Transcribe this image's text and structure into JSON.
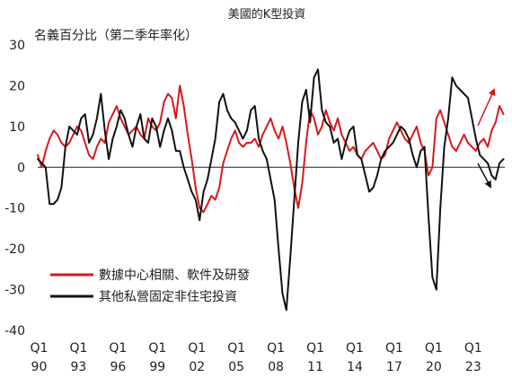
{
  "chart_data": {
    "type": "line",
    "title": "美國的K型投資",
    "subtitle": "名義百分比（第二季年率化）",
    "xlabel": "",
    "ylabel": "",
    "ylim": [
      -40,
      30
    ],
    "yticks": [
      30,
      20,
      10,
      0,
      -10,
      -20,
      -30,
      -40
    ],
    "xticks": [
      {
        "q": "Q1",
        "yr": "90",
        "t": 1990.0
      },
      {
        "q": "Q1",
        "yr": "93",
        "t": 1993.0
      },
      {
        "q": "Q1",
        "yr": "96",
        "t": 1996.0
      },
      {
        "q": "Q1",
        "yr": "99",
        "t": 1999.0
      },
      {
        "q": "Q1",
        "yr": "02",
        "t": 2002.0
      },
      {
        "q": "Q1",
        "yr": "05",
        "t": 2005.0
      },
      {
        "q": "Q1",
        "yr": "08",
        "t": 2008.0
      },
      {
        "q": "Q1",
        "yr": "11",
        "t": 2011.0
      },
      {
        "q": "Q1",
        "yr": "14",
        "t": 2014.0
      },
      {
        "q": "Q1",
        "yr": "17",
        "t": 2017.0
      },
      {
        "q": "Q1",
        "yr": "20",
        "t": 2020.0
      },
      {
        "q": "Q1",
        "yr": "23",
        "t": 2023.0
      }
    ],
    "grid": false,
    "legend_position": "bottom-left",
    "series": [
      {
        "name": "數據中心相關、軟件及研發",
        "color": "#d7191c",
        "x": [
          1989.9,
          1990.2,
          1990.5,
          1990.8,
          1991.1,
          1991.4,
          1991.7,
          1992.0,
          1992.3,
          1992.6,
          1992.9,
          1993.2,
          1993.5,
          1993.8,
          1994.1,
          1994.4,
          1994.7,
          1995.0,
          1995.3,
          1995.6,
          1995.9,
          1996.2,
          1996.5,
          1996.8,
          1997.1,
          1997.4,
          1997.7,
          1998.0,
          1998.3,
          1998.6,
          1998.9,
          1999.2,
          1999.5,
          1999.8,
          2000.1,
          2000.4,
          2000.7,
          2001.0,
          2001.3,
          2001.6,
          2001.9,
          2002.2,
          2002.5,
          2002.8,
          2003.1,
          2003.4,
          2003.7,
          2004.0,
          2004.3,
          2004.6,
          2004.9,
          2005.2,
          2005.5,
          2005.8,
          2006.1,
          2006.4,
          2006.7,
          2007.0,
          2007.3,
          2007.6,
          2007.9,
          2008.2,
          2008.5,
          2008.8,
          2009.1,
          2009.4,
          2009.7,
          2010.0,
          2010.3,
          2010.6,
          2010.9,
          2011.2,
          2011.5,
          2011.8,
          2012.1,
          2012.4,
          2012.7,
          2013.0,
          2013.3,
          2013.6,
          2013.9,
          2014.2,
          2014.5,
          2014.8,
          2015.1,
          2015.4,
          2015.7,
          2016.0,
          2016.3,
          2016.6,
          2016.9,
          2017.2,
          2017.5,
          2017.8,
          2018.1,
          2018.4,
          2018.7,
          2019.0,
          2019.3,
          2019.6,
          2019.9,
          2020.2,
          2020.5,
          2020.8,
          2021.1,
          2021.4,
          2021.7,
          2022.0,
          2022.3,
          2022.6,
          2022.9,
          2023.2,
          2023.5,
          2023.8,
          2024.1,
          2024.4,
          2024.7,
          2025.0,
          2025.3
        ],
        "values": [
          3,
          0,
          4,
          7,
          9,
          8,
          6,
          5,
          6,
          8,
          10,
          9,
          6,
          3,
          2,
          5,
          7,
          6,
          11,
          13,
          15,
          12,
          10,
          8,
          9,
          10,
          8,
          7,
          12,
          10,
          9,
          11,
          16,
          18,
          17,
          12,
          20,
          15,
          8,
          2,
          -5,
          -10,
          -11,
          -9,
          -7,
          -8,
          -5,
          1,
          4,
          7,
          9,
          6,
          5,
          6,
          6,
          7,
          5,
          8,
          10,
          12,
          9,
          7,
          10,
          6,
          1,
          -5,
          -10,
          -4,
          6,
          14,
          12,
          8,
          10,
          14,
          11,
          9,
          12,
          8,
          6,
          4,
          5,
          3,
          2,
          4,
          5,
          6,
          4,
          2,
          3,
          7,
          9,
          11,
          9,
          7,
          6,
          8,
          10,
          6,
          4,
          -2,
          0,
          12,
          14,
          11,
          8,
          5,
          4,
          6,
          8,
          6,
          5,
          4,
          6,
          7,
          5,
          9,
          11,
          15,
          13
        ]
      },
      {
        "name": "其他私營固定非住宅投資",
        "color": "#111111",
        "x": [
          1989.9,
          1990.2,
          1990.5,
          1990.8,
          1991.1,
          1991.4,
          1991.7,
          1992.0,
          1992.3,
          1992.6,
          1992.9,
          1993.2,
          1993.5,
          1993.8,
          1994.1,
          1994.4,
          1994.7,
          1995.0,
          1995.3,
          1995.6,
          1995.9,
          1996.2,
          1996.5,
          1996.8,
          1997.1,
          1997.4,
          1997.7,
          1998.0,
          1998.3,
          1998.6,
          1998.9,
          1999.2,
          1999.5,
          1999.8,
          2000.1,
          2000.4,
          2000.7,
          2001.0,
          2001.3,
          2001.6,
          2001.9,
          2002.2,
          2002.5,
          2002.8,
          2003.1,
          2003.4,
          2003.7,
          2004.0,
          2004.3,
          2004.6,
          2004.9,
          2005.2,
          2005.5,
          2005.8,
          2006.1,
          2006.4,
          2006.7,
          2007.0,
          2007.3,
          2007.6,
          2007.9,
          2008.2,
          2008.5,
          2008.8,
          2009.1,
          2009.4,
          2009.7,
          2010.0,
          2010.3,
          2010.6,
          2010.9,
          2011.2,
          2011.5,
          2011.8,
          2012.1,
          2012.4,
          2012.7,
          2013.0,
          2013.3,
          2013.6,
          2013.9,
          2014.2,
          2014.5,
          2014.8,
          2015.1,
          2015.4,
          2015.7,
          2016.0,
          2016.3,
          2016.6,
          2016.9,
          2017.2,
          2017.5,
          2017.8,
          2018.1,
          2018.4,
          2018.7,
          2019.0,
          2019.3,
          2019.6,
          2019.9,
          2020.2,
          2020.5,
          2020.8,
          2021.1,
          2021.4,
          2021.7,
          2022.0,
          2022.3,
          2022.6,
          2022.9,
          2023.2,
          2023.5,
          2023.8,
          2024.1,
          2024.4,
          2024.7,
          2025.0,
          2025.3
        ],
        "values": [
          2,
          1,
          0,
          -9,
          -9,
          -8,
          -5,
          5,
          10,
          9,
          8,
          12,
          13,
          6,
          8,
          12,
          18,
          9,
          2,
          7,
          10,
          14,
          12,
          8,
          5,
          10,
          13,
          7,
          6,
          12,
          10,
          5,
          9,
          12,
          9,
          4,
          4,
          0,
          -3,
          -6,
          -8,
          -13,
          -6,
          -3,
          2,
          7,
          16,
          18,
          14,
          12,
          11,
          9,
          7,
          9,
          14,
          15,
          7,
          4,
          2,
          -3,
          -8,
          -20,
          -31,
          -35,
          -22,
          -8,
          6,
          16,
          19,
          11,
          22,
          24,
          14,
          11,
          10,
          6,
          7,
          2,
          6,
          9,
          10,
          3,
          2,
          -2,
          -6,
          -5,
          -2,
          2,
          4,
          5,
          6,
          8,
          10,
          9,
          7,
          3,
          0,
          4,
          5,
          -12,
          -27,
          -30,
          -10,
          5,
          12,
          22,
          20,
          19,
          18,
          17,
          12,
          7,
          3,
          2,
          1,
          -2,
          -3,
          1,
          2
        ]
      }
    ],
    "annotations": {
      "red_arrow_color": "#d7191c",
      "black_arrow_color": "#111111"
    }
  }
}
